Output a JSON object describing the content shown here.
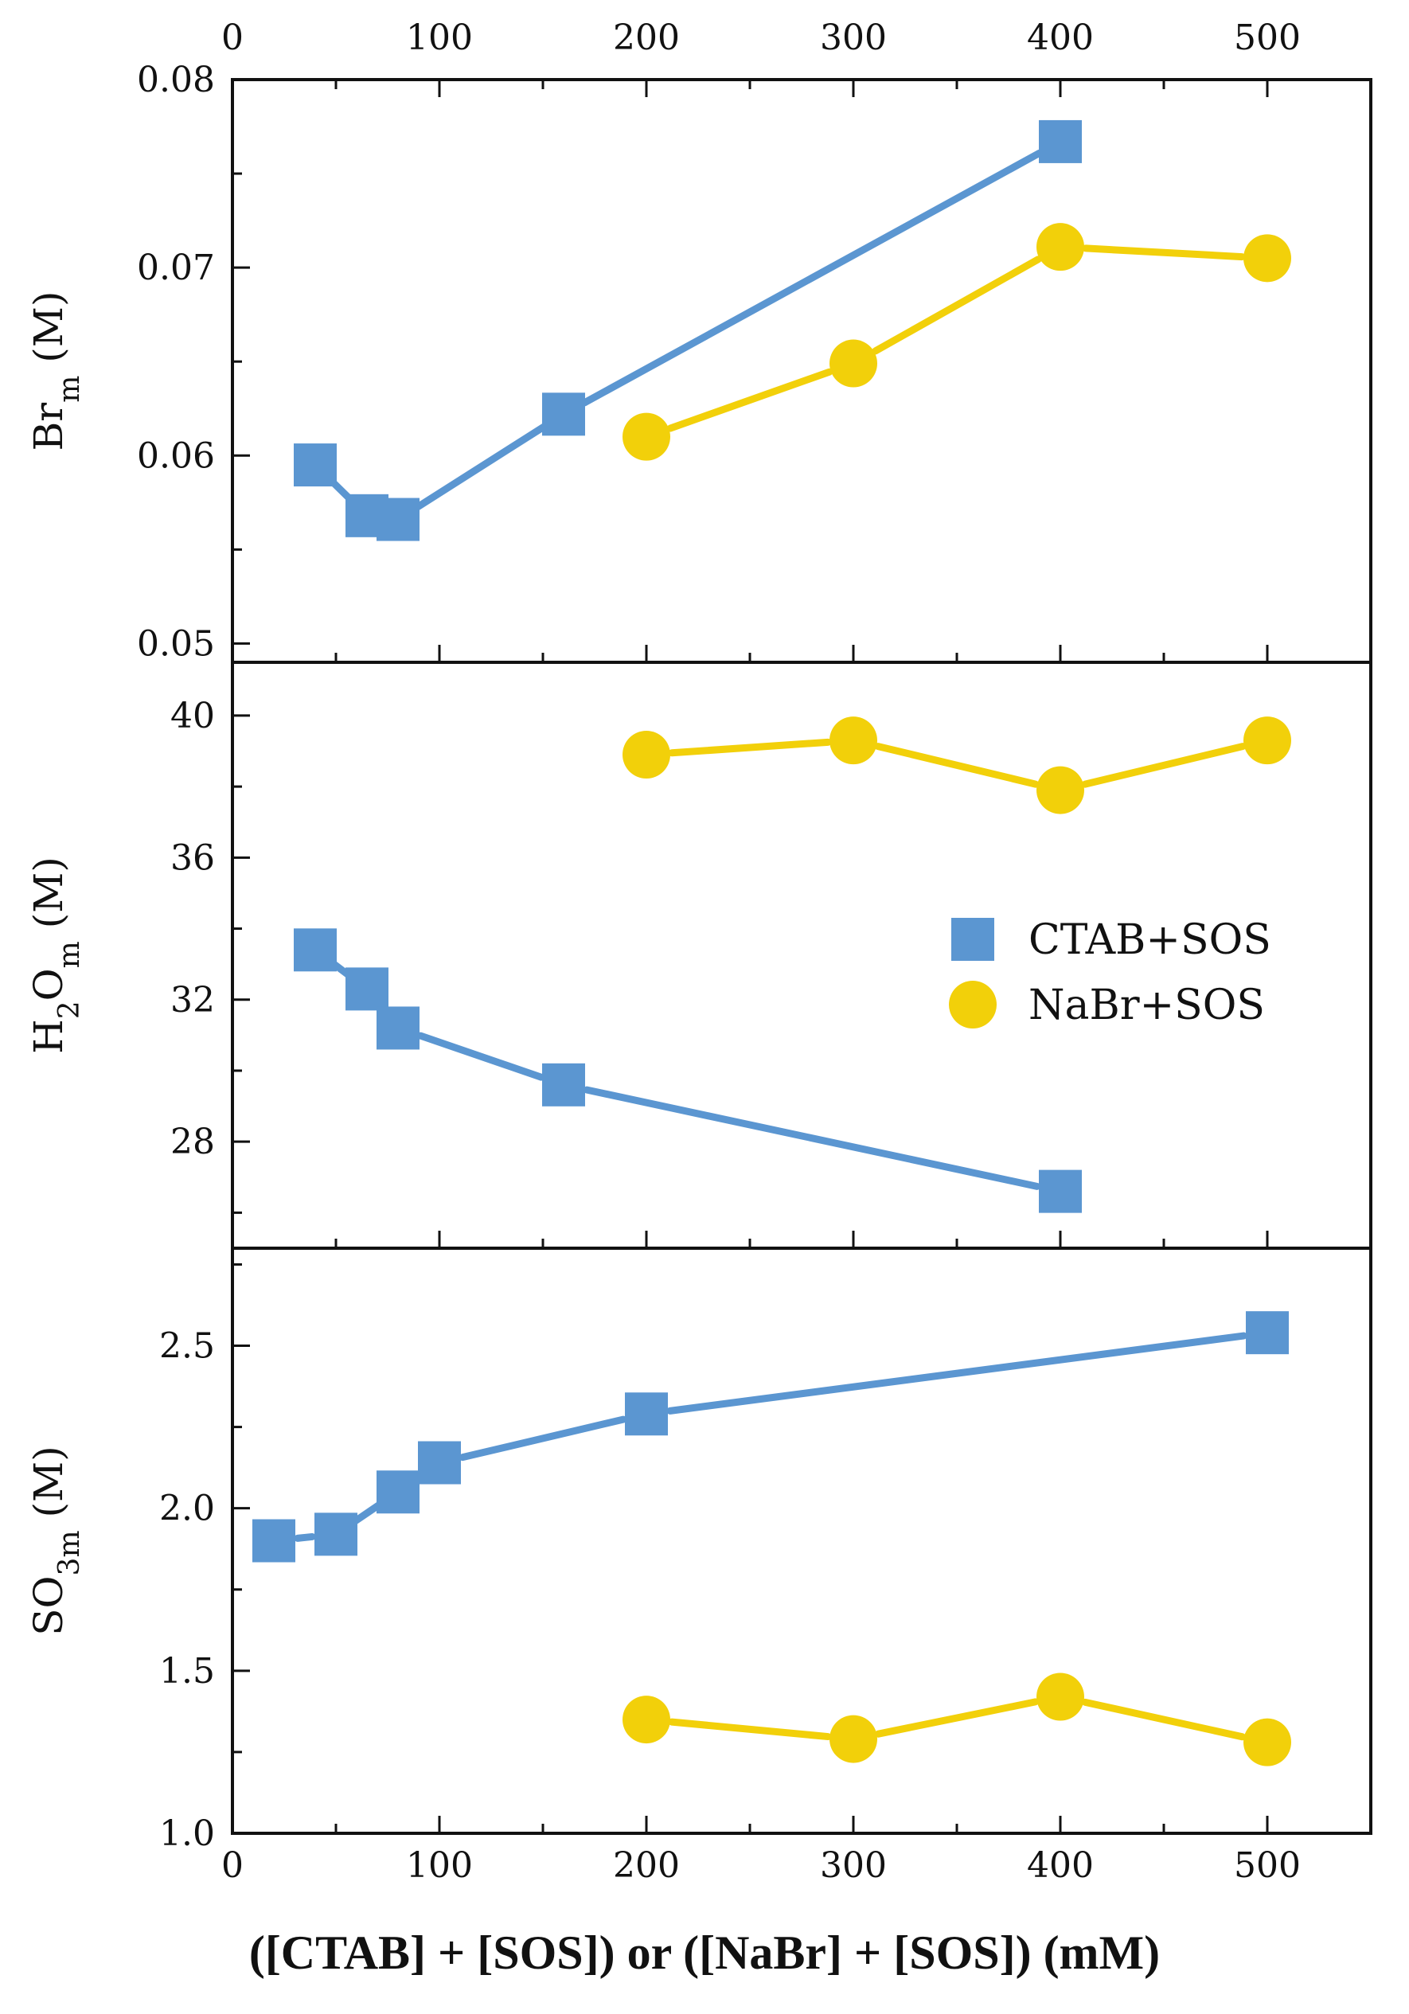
{
  "colors": {
    "ctab": "#5b96d1",
    "nabr": "#f2d00a",
    "axis": "#111111"
  },
  "legend": {
    "position": "middle-right of middle panel",
    "entries": [
      {
        "label": "CTAB+SOS",
        "marker": "square",
        "series": "ctab"
      },
      {
        "label": "NaBr+SOS",
        "marker": "circle",
        "series": "nabr"
      }
    ]
  },
  "x_axis": {
    "title": "([CTAB] + [SOS]) or ([NaBr] + [SOS]) (mM)",
    "range": [
      0,
      550
    ],
    "ticks": [
      0,
      100,
      200,
      300,
      400,
      500
    ],
    "tick_labels": [
      "0",
      "100",
      "200",
      "300",
      "400",
      "500"
    ]
  },
  "chart_data": [
    {
      "type": "line",
      "panel": "top",
      "ylabel": "Br",
      "ylabel_sub": "m",
      "ylabel_unit": "(M)",
      "ylim": [
        0.049,
        0.08
      ],
      "yticks": [
        0.05,
        0.06,
        0.07,
        0.08
      ],
      "ytick_labels": [
        "0.05",
        "0.06",
        "0.07",
        "0.08"
      ],
      "series": [
        {
          "name": "CTAB+SOS",
          "x": [
            40,
            65,
            80,
            160,
            400
          ],
          "values": [
            0.0595,
            0.0568,
            0.0566,
            0.0622,
            0.0767
          ]
        },
        {
          "name": "NaBr+SOS",
          "x": [
            200,
            300,
            400,
            500
          ],
          "values": [
            0.061,
            0.0649,
            0.0711,
            0.0705
          ]
        }
      ]
    },
    {
      "type": "line",
      "panel": "middle",
      "ylabel": "H",
      "ylabel_sub1": "2",
      "ylabel_mid": "O",
      "ylabel_sub": "m",
      "ylabel_unit": "(M)",
      "ylim": [
        25.0,
        41.5
      ],
      "yticks": [
        28,
        32,
        36,
        40
      ],
      "ytick_labels": [
        "28",
        "32",
        "36",
        "40"
      ],
      "series": [
        {
          "name": "CTAB+SOS",
          "x": [
            40,
            65,
            80,
            160,
            400
          ],
          "values": [
            33.4,
            32.3,
            31.2,
            29.6,
            26.6
          ]
        },
        {
          "name": "NaBr+SOS",
          "x": [
            200,
            300,
            400,
            500
          ],
          "values": [
            38.9,
            39.3,
            37.9,
            39.3
          ]
        }
      ]
    },
    {
      "type": "line",
      "panel": "bottom",
      "ylabel": "SO",
      "ylabel_sub1": "3",
      "ylabel_sub": "m",
      "ylabel_unit": "(M)",
      "ylim": [
        1.0,
        2.8
      ],
      "yticks": [
        1.0,
        1.5,
        2.0,
        2.5
      ],
      "ytick_labels": [
        "1.0",
        "1.5",
        "2.0",
        "2.5"
      ],
      "series": [
        {
          "name": "CTAB+SOS",
          "x": [
            20,
            50,
            80,
            100,
            200,
            500
          ],
          "values": [
            1.9,
            1.92,
            2.05,
            2.14,
            2.29,
            2.54
          ]
        },
        {
          "name": "NaBr+SOS",
          "x": [
            200,
            300,
            400,
            500
          ],
          "values": [
            1.35,
            1.29,
            1.42,
            1.28
          ]
        }
      ]
    }
  ]
}
